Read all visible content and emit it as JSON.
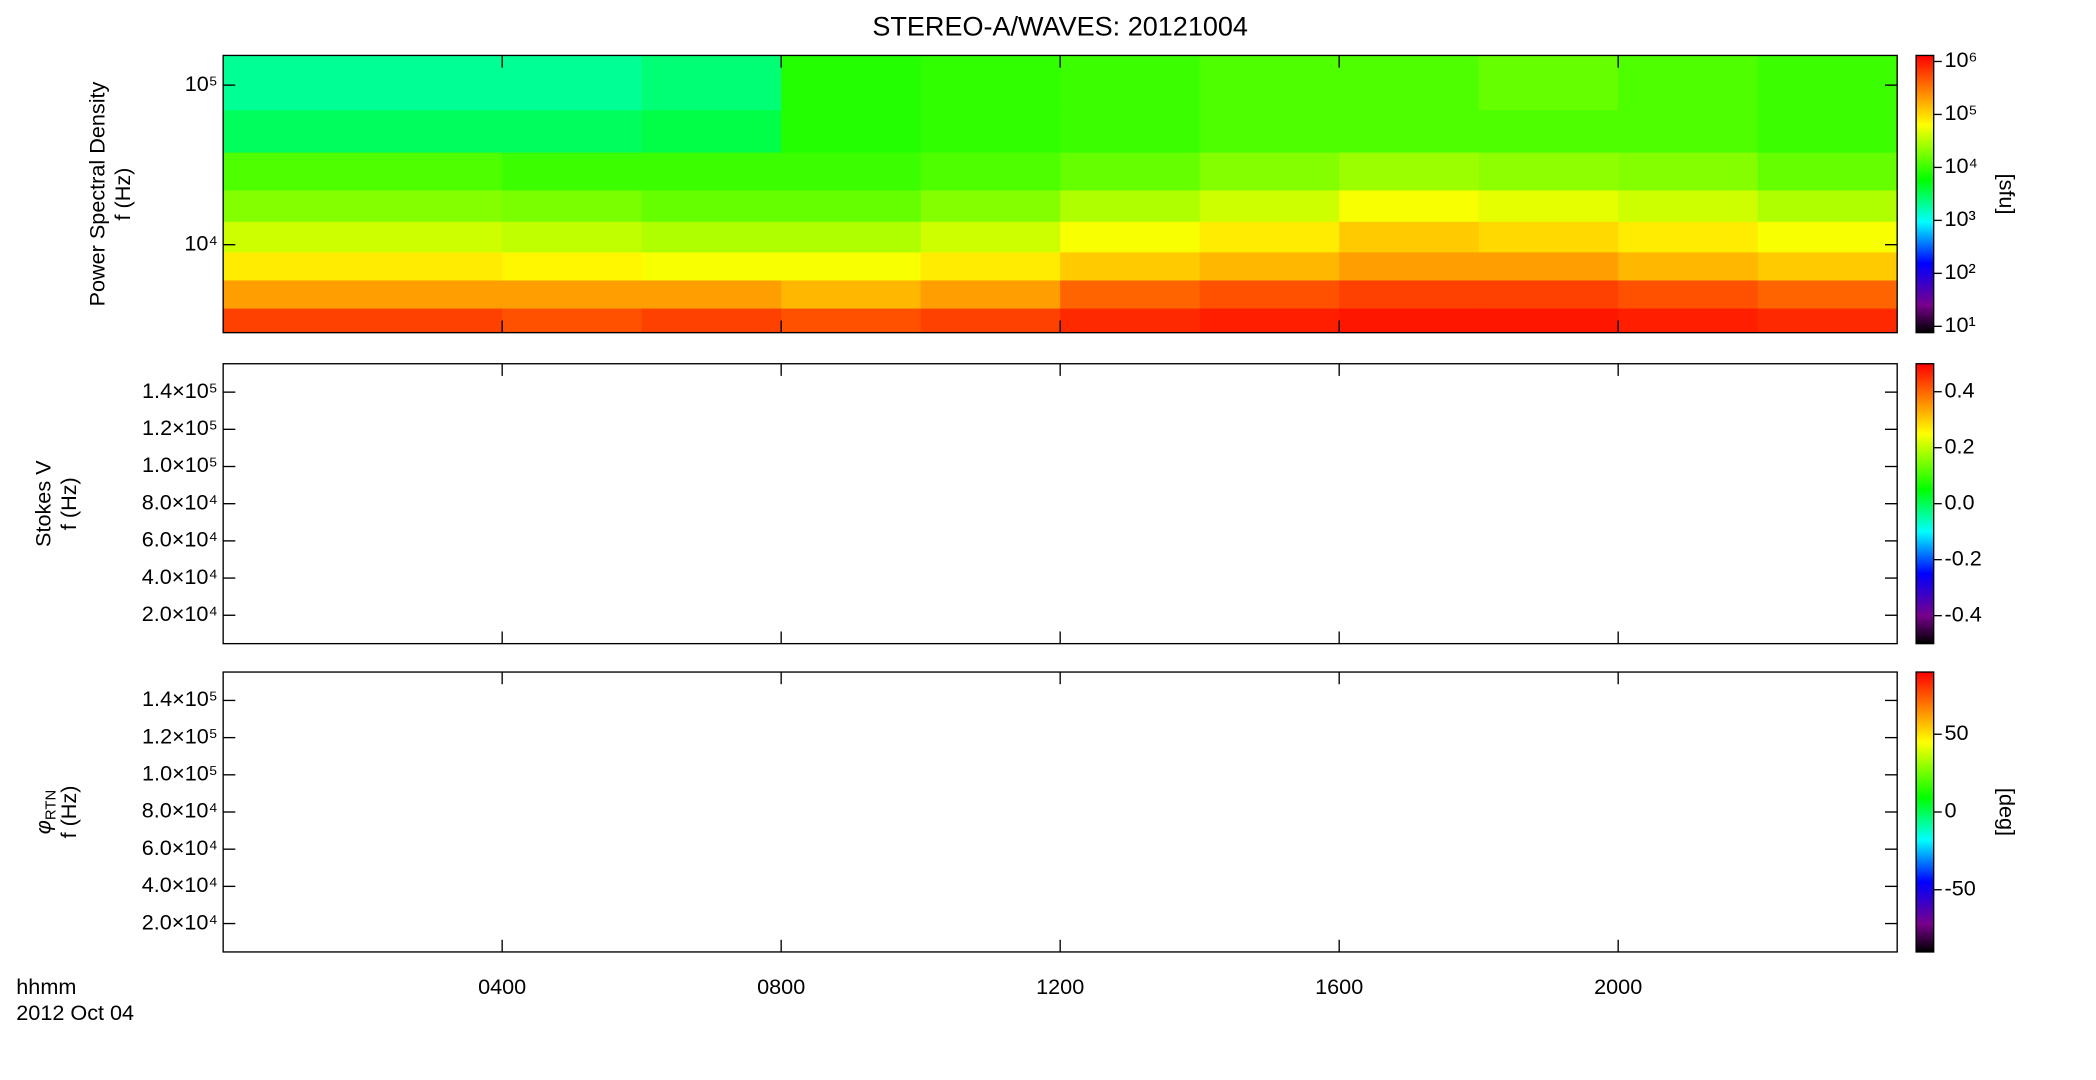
{
  "title": "STEREO-A/WAVES: 20121004",
  "x_axis": {
    "xlim": [
      0,
      24
    ],
    "xticks": [
      {
        "value": 4,
        "label": "0400"
      },
      {
        "value": 8,
        "label": "0800"
      },
      {
        "value": 12,
        "label": "1200"
      },
      {
        "value": 16,
        "label": "1600"
      },
      {
        "value": 20,
        "label": "2000"
      }
    ],
    "label": "hhmm",
    "date": "2012 Oct 04"
  },
  "chart_data": [
    {
      "type": "heatmap",
      "ylabel": "Power Spectral Density",
      "ylabel2": "f (Hz)",
      "ylim": [
        2810,
        153500
      ],
      "ylog": true,
      "yticks": [
        {
          "value": 10000,
          "label": "10⁴"
        },
        {
          "value": 100000,
          "label": "10⁵"
        }
      ],
      "x_edges": [
        0,
        2,
        4,
        6,
        8,
        10,
        12,
        14,
        16,
        18,
        20,
        22,
        24
      ],
      "y_edges": [
        2810,
        4000,
        6000,
        9000,
        14000,
        22000,
        38000,
        70000,
        153500
      ],
      "values": [
        [
          600000,
          600000,
          500000,
          600000,
          500000,
          600000,
          800000,
          900000,
          1000000,
          1000000,
          900000,
          800000
        ],
        [
          200000,
          200000,
          200000,
          200000,
          150000,
          200000,
          400000,
          500000,
          600000,
          600000,
          500000,
          400000
        ],
        [
          80000,
          80000,
          70000,
          60000,
          60000,
          80000,
          120000,
          150000,
          200000,
          200000,
          150000,
          120000
        ],
        [
          40000,
          40000,
          35000,
          30000,
          30000,
          40000,
          60000,
          80000,
          120000,
          100000,
          80000,
          60000
        ],
        [
          20000,
          20000,
          18000,
          15000,
          15000,
          20000,
          30000,
          40000,
          60000,
          50000,
          40000,
          30000
        ],
        [
          12000,
          12000,
          10000,
          10000,
          10000,
          12000,
          15000,
          20000,
          25000,
          22000,
          20000,
          15000
        ],
        [
          3000,
          3000,
          3000,
          3500,
          8000,
          9000,
          10000,
          12000,
          12000,
          12000,
          12000,
          10000
        ],
        [
          2000,
          2000,
          2000,
          2500,
          8000,
          9000,
          10000,
          12000,
          12000,
          15000,
          12000,
          10000
        ]
      ],
      "colorbar": {
        "lim": [
          7.6,
          1300000
        ],
        "log": true,
        "label": "[sfu]",
        "ticks": [
          {
            "value": 10,
            "label": "10¹"
          },
          {
            "value": 100,
            "label": "10²"
          },
          {
            "value": 1000,
            "label": "10³"
          },
          {
            "value": 10000,
            "label": "10⁴"
          },
          {
            "value": 100000,
            "label": "10⁵"
          },
          {
            "value": 1000000,
            "label": "10⁶"
          }
        ]
      }
    },
    {
      "type": "heatmap",
      "ylabel": "Stokes V",
      "ylabel2": "f (Hz)",
      "ylim": [
        4730,
        155270
      ],
      "ylog": false,
      "yticks": [
        {
          "value": 20000,
          "label": "2.0×10⁴"
        },
        {
          "value": 40000,
          "label": "4.0×10⁴"
        },
        {
          "value": 60000,
          "label": "6.0×10⁴"
        },
        {
          "value": 80000,
          "label": "8.0×10⁴"
        },
        {
          "value": 100000,
          "label": "1.0×10⁵"
        },
        {
          "value": 120000,
          "label": "1.2×10⁵"
        },
        {
          "value": 140000,
          "label": "1.4×10⁵"
        }
      ],
      "colorbar": {
        "lim": [
          -0.5,
          0.5
        ],
        "log": false,
        "ticks": [
          -0.4,
          -0.2,
          {
            "value": 0,
            "label": "0.0"
          },
          0.2,
          0.4
        ]
      }
    },
    {
      "type": "heatmap",
      "ylabel": "φ",
      "ylabel_sub": "RTN",
      "ylabel2": "f (Hz)",
      "ylim": [
        4730,
        155270
      ],
      "ylog": false,
      "yticks": [
        {
          "value": 20000,
          "label": "2.0×10⁴"
        },
        {
          "value": 40000,
          "label": "4.0×10⁴"
        },
        {
          "value": 60000,
          "label": "6.0×10⁴"
        },
        {
          "value": 80000,
          "label": "8.0×10⁴"
        },
        {
          "value": 100000,
          "label": "1.0×10⁵"
        },
        {
          "value": 120000,
          "label": "1.2×10⁵"
        },
        {
          "value": 140000,
          "label": "1.4×10⁵"
        }
      ],
      "colorbar": {
        "lim": [
          -90,
          90
        ],
        "log": false,
        "label": "[deg]",
        "ticks": [
          -50,
          0,
          50
        ]
      }
    }
  ]
}
